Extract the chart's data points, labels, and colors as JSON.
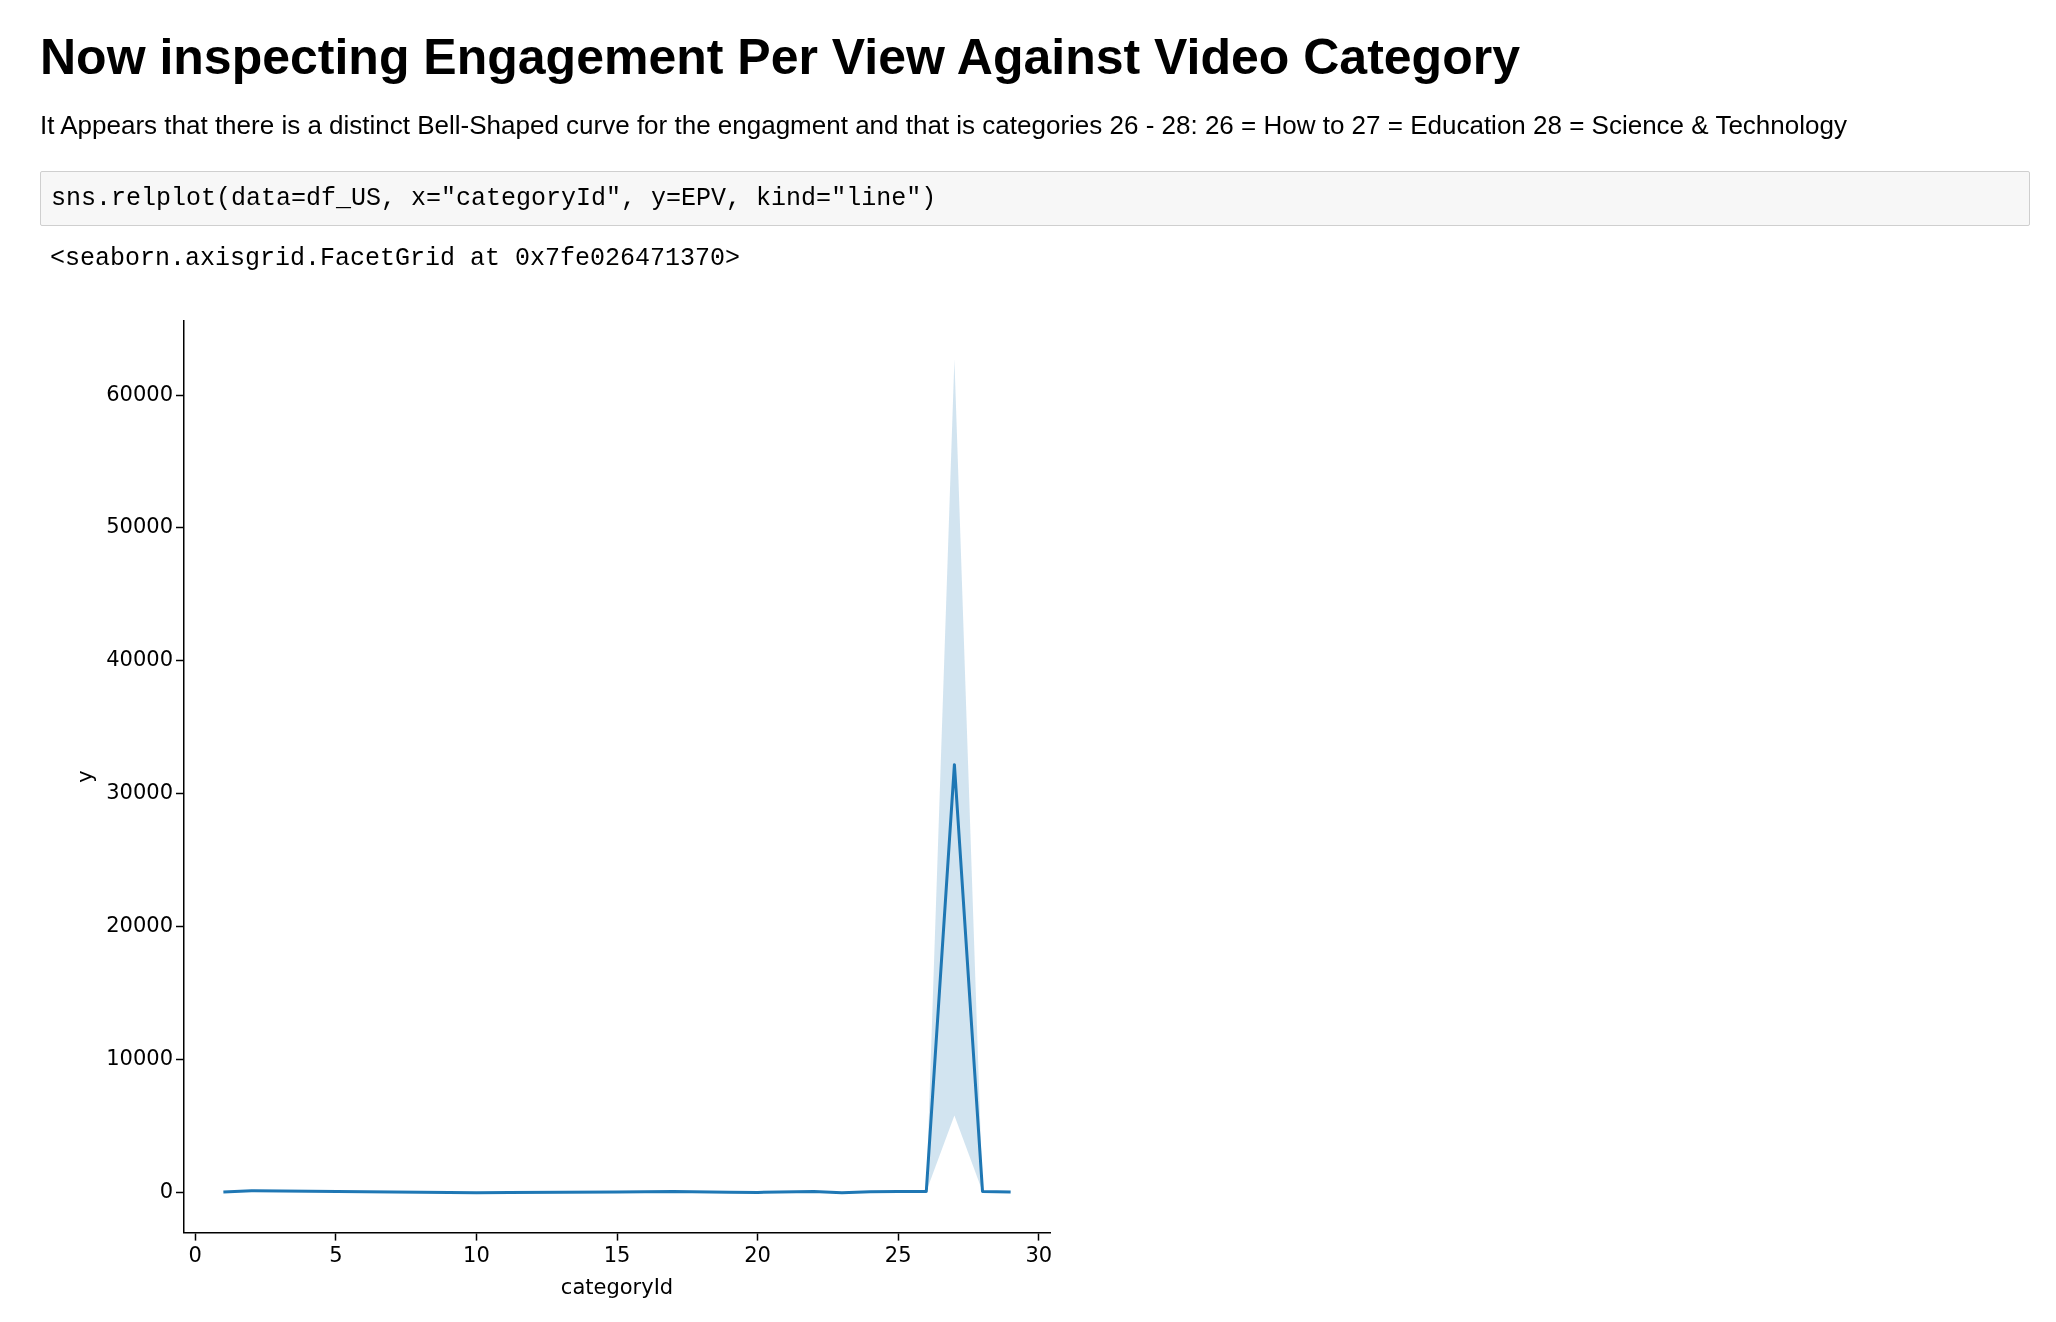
{
  "chart_data": {
    "type": "line",
    "title": "Now inspecting Engagement Per View Against Video Category",
    "subtitle": "It Appears that there is a distinct Bell-Shaped curve for the engagment and that is categories 26 - 28: 26 = How to 27 = Education 28 = Science & Technology",
    "annotations": [
      "sns.relplot(data=df_US, x=\"categoryId\", y=EPV, kind=\"line\")",
      "<seaborn.axisgrid.FacetGrid at 0x7fe026471370>"
    ],
    "xlabel": "categoryId",
    "ylabel": "y",
    "x": [
      1,
      2,
      10,
      15,
      17,
      19,
      20,
      22,
      23,
      24,
      25,
      26,
      27,
      28,
      29
    ],
    "series": [
      {
        "color": "#1f77b4",
        "values": [
          50,
          150,
          0,
          50,
          100,
          30,
          20,
          100,
          0,
          80,
          100,
          100,
          32200,
          100,
          50
        ],
        "lower": [
          50,
          150,
          0,
          50,
          100,
          30,
          20,
          100,
          0,
          80,
          100,
          100,
          5800,
          100,
          50
        ],
        "upper": [
          50,
          150,
          0,
          50,
          100,
          30,
          20,
          100,
          0,
          80,
          100,
          100,
          62700,
          100,
          50
        ]
      }
    ],
    "xlim": [
      -0.4,
      30.4
    ],
    "xticks": [
      0,
      5,
      10,
      15,
      20,
      25,
      30
    ],
    "ylim": [
      -3000,
      65600
    ],
    "yticks": [
      0,
      10000,
      20000,
      30000,
      40000,
      50000,
      60000
    ],
    "grid": false,
    "legend": false,
    "marker": "none",
    "line_style": "solid"
  }
}
